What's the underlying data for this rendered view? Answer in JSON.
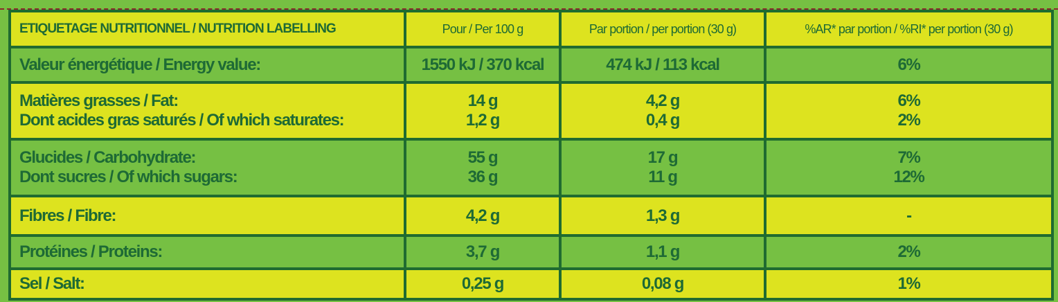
{
  "header": [
    "ETIQUETAGE NUTRITIONNEL / NUTRITION LABELLING",
    "Pour / Per 100 g",
    "Par portion / per portion (30 g)",
    "%AR* par portion / %RI* per portion (30 g)"
  ],
  "rows": [
    {
      "labels": [
        "Valeur énergétique / Energy value:"
      ],
      "per100": [
        "1550 kJ / 370 kcal"
      ],
      "portion": [
        "474 kJ / 113 kcal"
      ],
      "ri": [
        "6%"
      ]
    },
    {
      "labels": [
        "Matières grasses / Fat:",
        "Dont acides gras saturés / Of which saturates:"
      ],
      "per100": [
        "14 g",
        "1,2 g"
      ],
      "portion": [
        "4,2 g",
        "0,4 g"
      ],
      "ri": [
        "6%",
        "2%"
      ]
    },
    {
      "labels": [
        "Glucides / Carbohydrate:",
        "Dont sucres / Of which sugars:"
      ],
      "per100": [
        "55 g",
        "36 g"
      ],
      "portion": [
        "17 g",
        "11 g"
      ],
      "ri": [
        "7%",
        "12%"
      ]
    },
    {
      "labels": [
        "Fibres / Fibre:"
      ],
      "per100": [
        "4,2 g"
      ],
      "portion": [
        "1,3 g"
      ],
      "ri": [
        "-"
      ]
    },
    {
      "labels": [
        "Protéines / Proteins:"
      ],
      "per100": [
        "3,7 g"
      ],
      "portion": [
        "1,1 g"
      ],
      "ri": [
        "2%"
      ]
    },
    {
      "labels": [
        "Sel / Salt:"
      ],
      "per100": [
        "0,25 g"
      ],
      "portion": [
        "0,08 g"
      ],
      "ri": [
        "1%"
      ]
    }
  ],
  "colors": {
    "green": "#76c043",
    "yellow": "#dde31f",
    "text": "#1e6a35",
    "border": "#1f6b30"
  }
}
